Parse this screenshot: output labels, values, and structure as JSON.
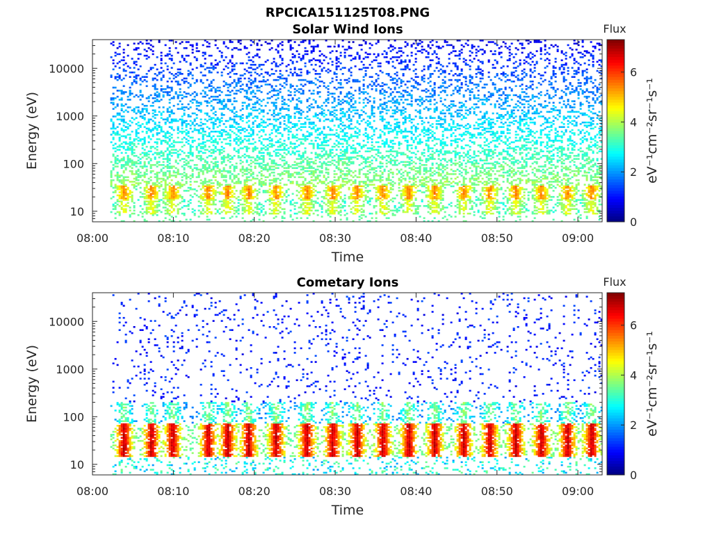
{
  "figure": {
    "title": "RPCICA151125T08.PNG"
  },
  "colormap": [
    "#00007f",
    "#0000ff",
    "#007fff",
    "#00ffff",
    "#7fff7f",
    "#ffff00",
    "#ff7f00",
    "#ff0000",
    "#7f0000"
  ],
  "chart_data": [
    {
      "type": "heatmap",
      "title": "Solar Wind Ions",
      "xlabel": "Time",
      "ylabel": "Energy (eV)",
      "x_ticks": [
        "08:00",
        "08:10",
        "08:20",
        "08:30",
        "08:40",
        "08:50",
        "09:00"
      ],
      "x_range_minutes": [
        0,
        63
      ],
      "data_start_minute": 2.2,
      "y_ticks": [
        "10",
        "100",
        "1000",
        "10000"
      ],
      "y_scale": "log",
      "y_range": [
        6,
        40000
      ],
      "colorbar": {
        "title": "Flux",
        "unit_label": "eV⁻¹cm⁻²sr⁻¹s⁻¹",
        "ticks": [
          "0",
          "2",
          "4",
          "6"
        ],
        "range": [
          0,
          7.3
        ]
      },
      "bursts_minute": [
        3.8,
        7.2,
        9.8,
        14.2,
        16.6,
        19.2,
        22.6,
        26.4,
        29.6,
        32.6,
        35.8,
        39.0,
        42.2,
        45.8,
        49.0,
        52.2,
        55.4,
        58.6,
        61.6
      ],
      "profile": "solar-wind"
    },
    {
      "type": "heatmap",
      "title": "Cometary Ions",
      "xlabel": "Time",
      "ylabel": "Energy (eV)",
      "x_ticks": [
        "08:00",
        "08:10",
        "08:20",
        "08:30",
        "08:40",
        "08:50",
        "09:00"
      ],
      "x_range_minutes": [
        0,
        63
      ],
      "data_start_minute": 2.2,
      "y_ticks": [
        "10",
        "100",
        "1000",
        "10000"
      ],
      "y_scale": "log",
      "y_range": [
        6,
        40000
      ],
      "colorbar": {
        "title": "Flux",
        "unit_label": "eV⁻¹cm⁻²sr⁻¹s⁻¹",
        "ticks": [
          "0",
          "2",
          "4",
          "6"
        ],
        "range": [
          0,
          7.3
        ]
      },
      "bursts_minute": [
        3.8,
        7.2,
        9.8,
        14.2,
        16.6,
        19.2,
        22.6,
        26.4,
        29.6,
        32.6,
        35.8,
        39.0,
        42.2,
        45.8,
        49.0,
        52.2,
        55.4,
        58.6,
        61.6
      ],
      "profile": "cometary"
    }
  ]
}
